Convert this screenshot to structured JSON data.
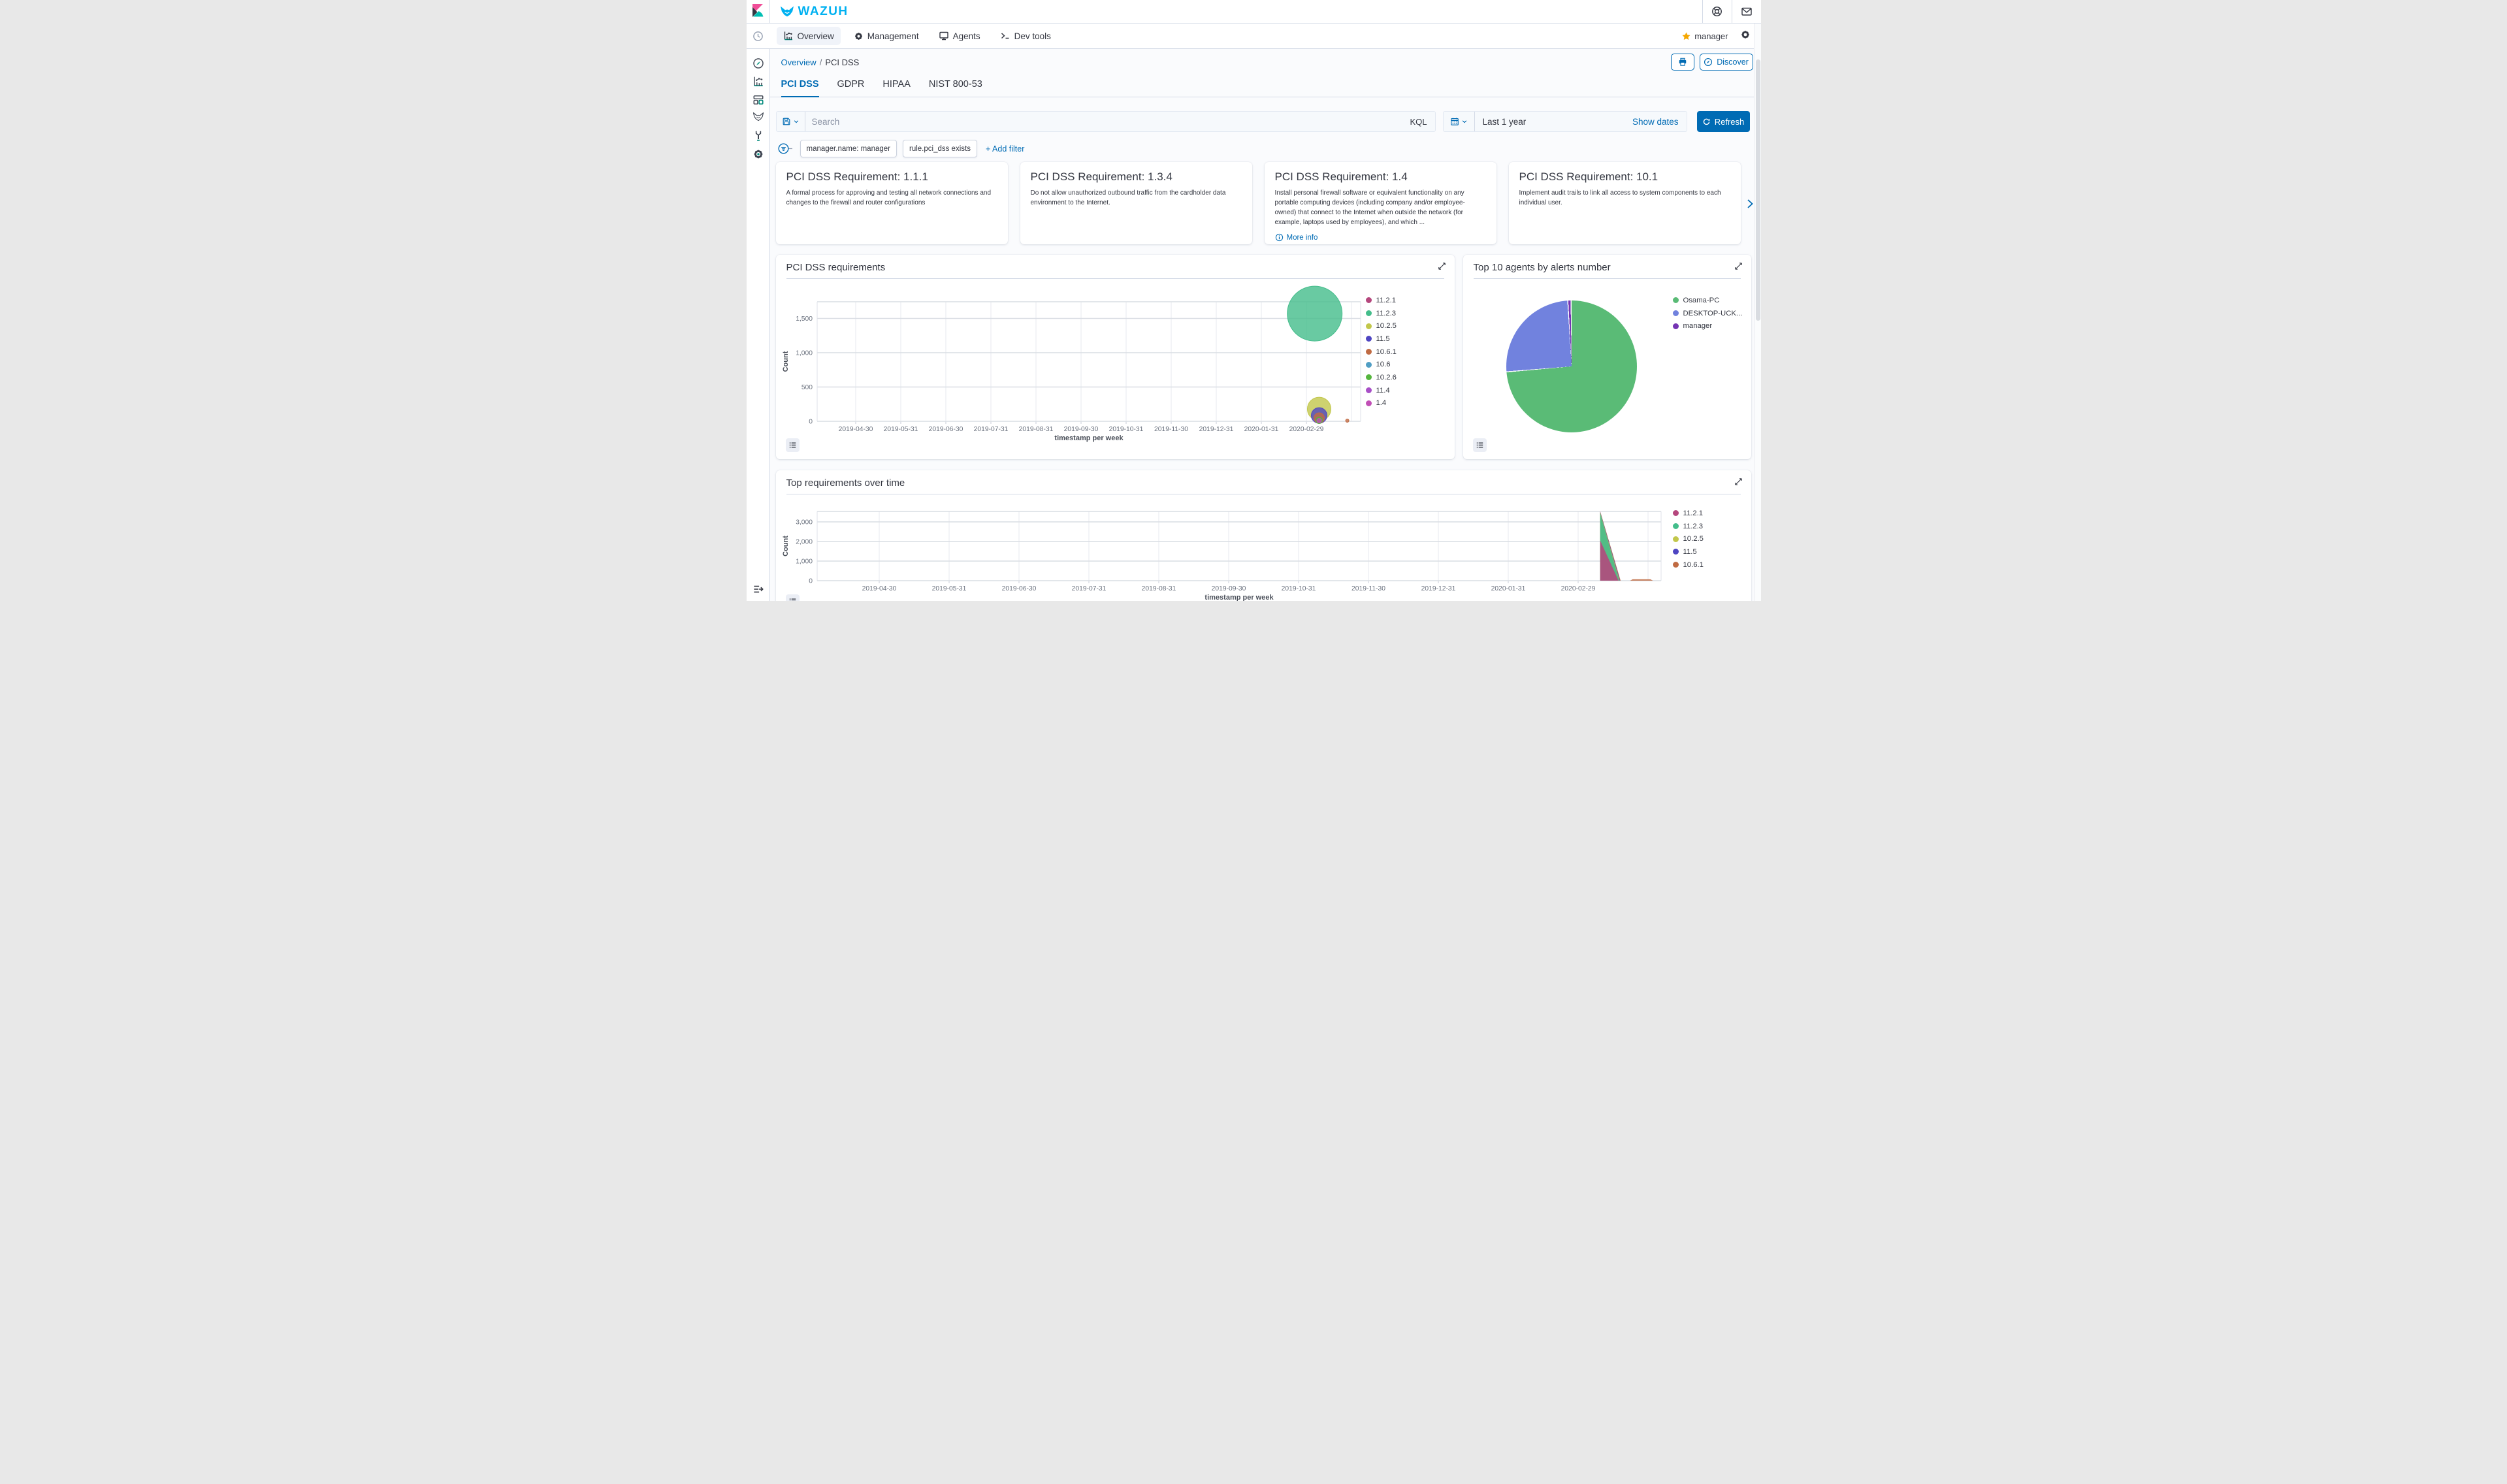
{
  "topbar": {
    "brand": "WAZUH",
    "icons": [
      "help-icon",
      "mail-icon"
    ]
  },
  "navbar": {
    "items": [
      {
        "label": "Overview",
        "icon": "bar-chart-icon",
        "active": true
      },
      {
        "label": "Management",
        "icon": "gear-icon",
        "active": false
      },
      {
        "label": "Agents",
        "icon": "monitor-icon",
        "active": false
      },
      {
        "label": "Dev tools",
        "icon": "terminal-icon",
        "active": false
      }
    ],
    "user": {
      "name": "manager",
      "icon": "star-icon"
    },
    "right_icons": [
      "settings-gear-icon"
    ]
  },
  "sidebar": {
    "icons": [
      "recent-clock-icon",
      "discover-compass-icon",
      "visualize-icon",
      "dashboard-icon",
      "wazuh-wolf-icon",
      "dev-tools-wrench-icon",
      "management-gear-icon",
      "dock-navigation-icon"
    ]
  },
  "breadcrumb": {
    "link": "Overview",
    "separator": "/",
    "current": "PCI DSS"
  },
  "page_actions": {
    "print": "print",
    "discover": "Discover"
  },
  "tabs": {
    "items": [
      "PCI DSS",
      "GDPR",
      "HIPAA",
      "NIST 800-53"
    ],
    "active": "PCI DSS"
  },
  "search_bar": {
    "placeholder": "Search",
    "kql": "KQL",
    "time_value": "Last 1 year",
    "show_dates": "Show dates",
    "refresh": "Refresh"
  },
  "filters": {
    "pills": [
      "manager.name: manager",
      "rule.pci_dss exists"
    ],
    "add_filter": "+ Add filter"
  },
  "requirement_cards": [
    {
      "title": "PCI DSS Requirement: 1.1.1",
      "body": "A formal process for approving and testing all network connections and changes to the firewall and router configurations"
    },
    {
      "title": "PCI DSS Requirement: 1.3.4",
      "body": "Do not allow unauthorized outbound traffic from the cardholder data environment to the Internet."
    },
    {
      "title": "PCI DSS Requirement: 1.4",
      "body": "Install personal firewall software or equivalent functionality on any portable computing devices (including company and/or employee-owned) that connect to the Internet when outside the network (for example, laptops used by employees), and which ...",
      "link": "More info"
    },
    {
      "title": "PCI DSS Requirement: 10.1",
      "body": "Implement audit trails to link all access to system components to each individual user."
    }
  ],
  "colors": {
    "primary": "#006BB4",
    "star": "#f5a700",
    "wazuh_blue": "#00b1f1"
  },
  "chart_data": [
    {
      "type": "bubble",
      "title": "PCI DSS requirements",
      "xlabel": "timestamp per week",
      "ylabel": "Count",
      "grid": true,
      "legend_position": "right",
      "ylim": [
        0,
        1743
      ],
      "y_ticks": {
        "values": [
          0,
          500,
          1000,
          1500
        ],
        "labels": [
          "0",
          "500",
          "1,000",
          "1,500"
        ]
      },
      "x_tick_labels": [
        "2019-04-30",
        "2019-05-31",
        "2019-06-30",
        "2019-07-31",
        "2019-08-31",
        "2019-09-30",
        "2019-10-31",
        "2019-11-30",
        "2019-12-31",
        "2020-01-31",
        "2020-02-29"
      ],
      "series": [
        {
          "label": "11.2.1",
          "color": "#b5477d"
        },
        {
          "label": "11.2.3",
          "color": "#44bd8b"
        },
        {
          "label": "10.2.5",
          "color": "#c2c74b"
        },
        {
          "label": "11.5",
          "color": "#4e45c2"
        },
        {
          "label": "10.6.1",
          "color": "#c06b43"
        },
        {
          "label": "10.6",
          "color": "#509ec4"
        },
        {
          "label": "10.2.6",
          "color": "#55b63e"
        },
        {
          "label": "11.4",
          "color": "#a84fc7"
        },
        {
          "label": "1.4",
          "color": "#c14fb6"
        }
      ],
      "points": [
        {
          "series": "11.2.3",
          "date": "2020-03-05",
          "count": 1570,
          "r": 42
        },
        {
          "series": "10.2.5",
          "date": "2020-03-08",
          "count": 180,
          "r": 18
        },
        {
          "series": "11.5",
          "date": "2020-03-08",
          "count": 85,
          "r": 12
        },
        {
          "series": "10.6.1",
          "date": "2020-03-08",
          "count": 48,
          "r": 8
        },
        {
          "series": "10.2.6",
          "date": "2020-03-08",
          "count": 14,
          "r": 5
        },
        {
          "series": "1.4",
          "date": "2020-03-08",
          "count": 2,
          "r": 3.5
        },
        {
          "series": "10.6.1",
          "date": "2020-03-27",
          "count": 5,
          "r": 2.5
        }
      ]
    },
    {
      "type": "pie",
      "title": "Top 10 agents by alerts number",
      "legend_position": "right",
      "slices": [
        {
          "label": "Osama-PC",
          "color": "#5abb76",
          "pct": 73.8
        },
        {
          "label": "DESKTOP-UCK...",
          "color": "#7182de",
          "pct": 25.4
        },
        {
          "label": "manager",
          "color": "#7534b3",
          "pct": 0.8
        }
      ]
    },
    {
      "type": "area",
      "stacked": true,
      "title": "Top requirements over time",
      "xlabel": "timestamp per week",
      "ylabel": "Count",
      "grid": true,
      "legend_position": "right",
      "ylim": [
        0,
        3530
      ],
      "y_ticks": {
        "values": [
          0,
          1000,
          2000,
          3000
        ],
        "labels": [
          "0",
          "1,000",
          "2,000",
          "3,000"
        ]
      },
      "x_tick_labels": [
        "2019-04-30",
        "2019-05-31",
        "2019-06-30",
        "2019-07-31",
        "2019-08-31",
        "2019-09-30",
        "2019-10-31",
        "2019-11-30",
        "2019-12-31",
        "2020-01-31",
        "2020-02-29"
      ],
      "series": [
        {
          "label": "11.2.1",
          "color": "#b5477d",
          "peak": 2050
        },
        {
          "label": "11.2.3",
          "color": "#44bd8b",
          "peak": 1400
        },
        {
          "label": "10.2.5",
          "color": "#c2c74b",
          "peak": 40
        },
        {
          "label": "11.5",
          "color": "#4e45c2",
          "peak": 30
        },
        {
          "label": "10.6.1",
          "color": "#c06b43",
          "peak": 25
        }
      ],
      "spike": {
        "date": "2020-03-09",
        "zero_date": "2020-03-17"
      },
      "residual": {
        "series": "10.6.1",
        "from": "2020-03-22",
        "to": "2020-04-01",
        "value": 70
      }
    }
  ]
}
